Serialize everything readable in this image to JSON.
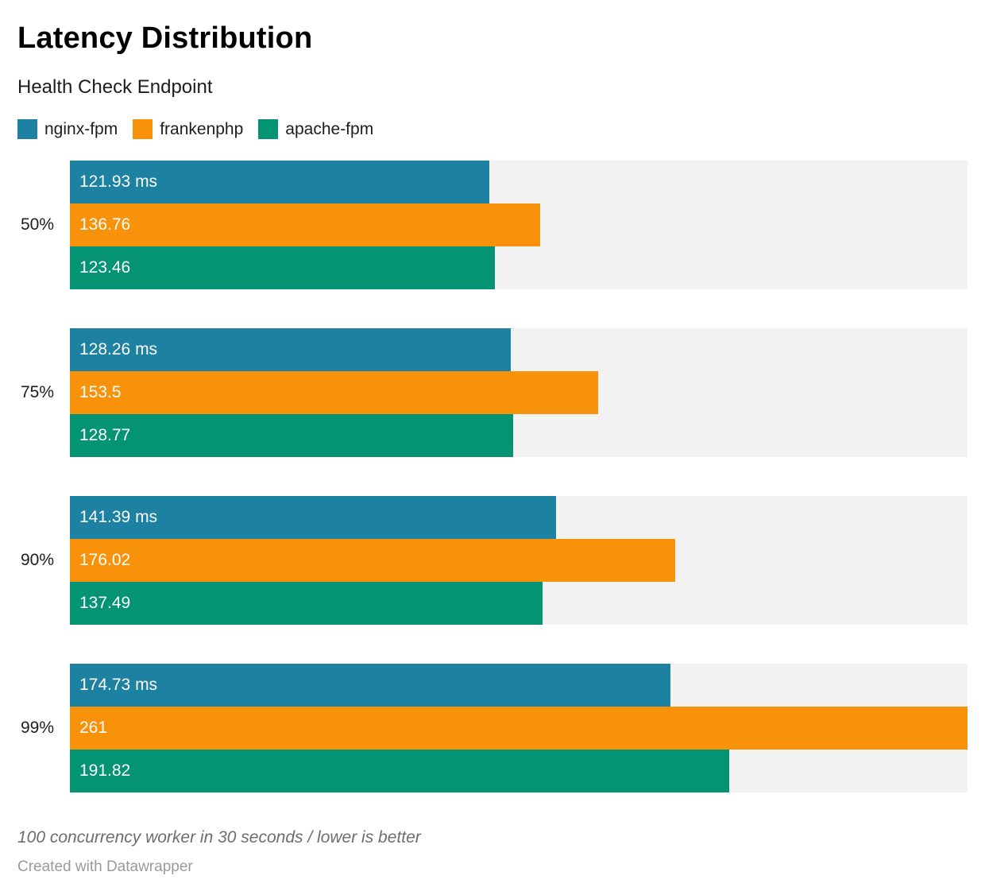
{
  "header": {
    "title": "Latency Distribution",
    "subtitle": "Health Check Endpoint"
  },
  "legend": [
    {
      "label": "nginx-fpm",
      "color": "#1d81a2"
    },
    {
      "label": "frankenphp",
      "color": "#f9920b"
    },
    {
      "label": "apache-fpm",
      "color": "#049473"
    }
  ],
  "chart_data": {
    "type": "bar",
    "orientation": "horizontal",
    "title": "Latency Distribution",
    "subtitle": "Health Check Endpoint",
    "categories": [
      "50%",
      "75%",
      "90%",
      "99%"
    ],
    "series": [
      {
        "name": "nginx-fpm",
        "color": "#1d81a2",
        "values": [
          121.93,
          128.26,
          141.39,
          174.73
        ],
        "labels": [
          "121.93 ms",
          "128.26 ms",
          "141.39 ms",
          "174.73 ms"
        ]
      },
      {
        "name": "frankenphp",
        "color": "#f9920b",
        "values": [
          136.76,
          153.5,
          176.02,
          261
        ],
        "labels": [
          "136.76",
          "153.5",
          "176.02",
          "261"
        ]
      },
      {
        "name": "apache-fpm",
        "color": "#049473",
        "values": [
          123.46,
          128.77,
          137.49,
          191.82
        ],
        "labels": [
          "123.46",
          "128.77",
          "137.49",
          "191.82"
        ]
      }
    ],
    "xlim": [
      0,
      261
    ],
    "unit": "ms",
    "grid": false,
    "legend_position": "top",
    "track_color": "#f2f2f2",
    "value_label_color": "#fdfdfd"
  },
  "footer": {
    "note": "100 concurrency worker in 30 seconds / lower is better",
    "credit": "Created with Datawrapper"
  }
}
